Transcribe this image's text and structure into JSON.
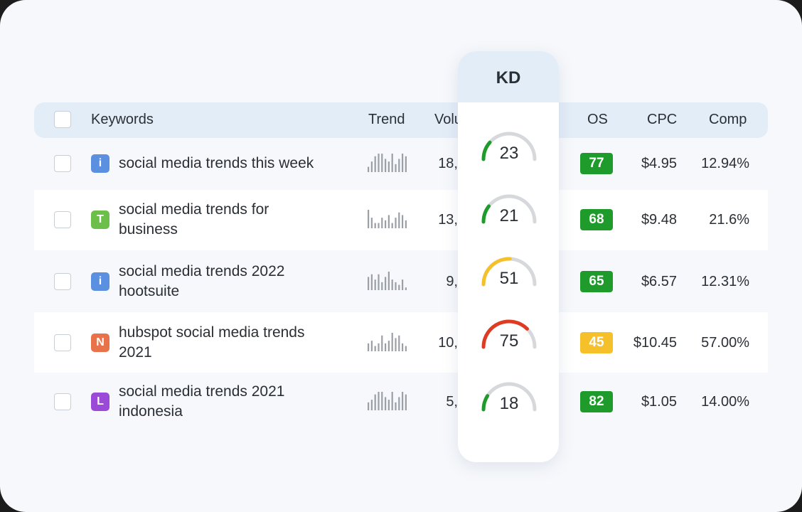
{
  "table": {
    "headers": {
      "keywords": "Keywords",
      "trend": "Trend",
      "volume": "Volu",
      "os": "OS",
      "cpc": "CPC",
      "comp": "Comp"
    },
    "rows": [
      {
        "intent": "i",
        "intent_color": "#5b8fe0",
        "keyword_lines": [
          "social media trends this week"
        ],
        "trend": [
          2,
          4,
          6,
          7,
          7,
          5,
          4,
          7,
          3,
          5,
          7,
          6
        ],
        "volume": "18,",
        "os": "77",
        "os_color": "#1e9b2a",
        "cpc": "$4.95",
        "comp": "12.94%"
      },
      {
        "intent": "T",
        "intent_color": "#6cc04a",
        "keyword_lines": [
          "social media trends for",
          "business"
        ],
        "trend": [
          7,
          4,
          2,
          2,
          4,
          3,
          5,
          2,
          4,
          6,
          5,
          3
        ],
        "volume": "13,",
        "os": "68",
        "os_color": "#1e9b2a",
        "cpc": "$9.48",
        "comp": "21.6%"
      },
      {
        "intent": "i",
        "intent_color": "#5b8fe0",
        "keyword_lines": [
          "social media trends 2022",
          "hootsuite"
        ],
        "trend": [
          5,
          6,
          4,
          6,
          3,
          5,
          7,
          4,
          3,
          2,
          4,
          1
        ],
        "volume": "9,",
        "os": "65",
        "os_color": "#1e9b2a",
        "cpc": "$6.57",
        "comp": "12.31%"
      },
      {
        "intent": "N",
        "intent_color": "#e8734a",
        "keyword_lines": [
          "hubspot social media trends",
          "2021"
        ],
        "trend": [
          3,
          4,
          2,
          3,
          6,
          3,
          4,
          7,
          5,
          6,
          3,
          2
        ],
        "volume": "10,",
        "os": "45",
        "os_color": "#f5c02a",
        "cpc": "$10.45",
        "comp": "57.00%"
      },
      {
        "intent": "L",
        "intent_color": "#9b4ad8",
        "keyword_lines": [
          "social media trends 2021",
          "indonesia"
        ],
        "trend": [
          3,
          4,
          6,
          7,
          7,
          5,
          4,
          7,
          3,
          5,
          7,
          6
        ],
        "volume": "5,",
        "os": "82",
        "os_color": "#1e9b2a",
        "cpc": "$1.05",
        "comp": "14.00%"
      }
    ]
  },
  "kd_panel": {
    "title": "KD",
    "values": [
      {
        "value": "23",
        "fraction": 0.23,
        "color": "#1e9b2a"
      },
      {
        "value": "21",
        "fraction": 0.21,
        "color": "#1e9b2a"
      },
      {
        "value": "51",
        "fraction": 0.51,
        "color": "#f5c02a"
      },
      {
        "value": "75",
        "fraction": 0.75,
        "color": "#dd3b22"
      },
      {
        "value": "18",
        "fraction": 0.18,
        "color": "#1e9b2a"
      }
    ]
  }
}
